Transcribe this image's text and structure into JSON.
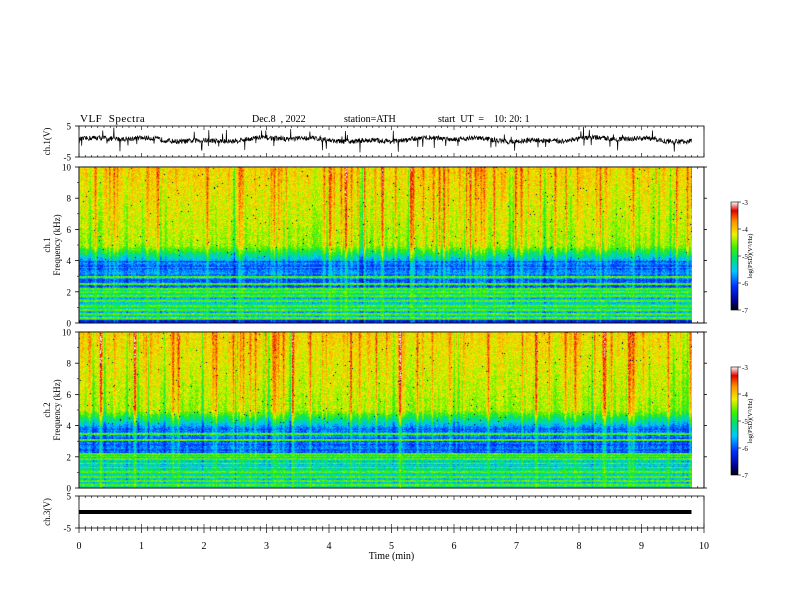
{
  "header": {
    "title": "VLF  Spectra",
    "date": "Dec.8  , 2022",
    "station": "station=ATH",
    "start": "start  UT  =    10: 20: 1"
  },
  "chart_data": [
    {
      "type": "line",
      "name": "ch1-waveform",
      "ylabel": "ch.1(V)",
      "ylim": [
        -5,
        5
      ],
      "yticks": [
        "5",
        "-5"
      ],
      "xlim": [
        0,
        10
      ],
      "baseline_v": 0.6,
      "data_end_min": 9.8
    },
    {
      "type": "heatmap",
      "name": "ch1-spectrogram",
      "ylabel": "ch.1\nFrequency (kHz)",
      "ylim": [
        0,
        10
      ],
      "yticks": [
        "0",
        "2",
        "4",
        "6",
        "8",
        "10"
      ],
      "xlim": [
        0,
        10
      ],
      "data_end_min": 9.8,
      "colorbar": {
        "label": "log(PSD)(V²/Hz)",
        "range": [
          -7,
          -3
        ],
        "ticks": [
          "-3",
          "-4",
          "-5",
          "-6",
          "-7"
        ]
      }
    },
    {
      "type": "heatmap",
      "name": "ch2-spectrogram",
      "ylabel": "ch.2\nFrequency (kHz)",
      "ylim": [
        0,
        10
      ],
      "yticks": [
        "0",
        "2",
        "4",
        "6",
        "8",
        "10"
      ],
      "xlim": [
        0,
        10
      ],
      "data_end_min": 9.8,
      "colorbar": {
        "label": "log(PSD)(V²/Hz)",
        "range": [
          -7,
          -3
        ],
        "ticks": [
          "-3",
          "-4",
          "-5",
          "-6",
          "-7"
        ]
      }
    },
    {
      "type": "line",
      "name": "ch3-waveform",
      "ylabel": "ch.3(V)",
      "ylim": [
        -5,
        5
      ],
      "yticks": [
        "5",
        "-5"
      ],
      "xlim": [
        0,
        10
      ],
      "baseline_v": 0,
      "data_end_min": 9.8
    }
  ],
  "xaxis": {
    "label": "Time  (min)",
    "ticks": [
      "0",
      "1",
      "2",
      "3",
      "4",
      "5",
      "6",
      "7",
      "8",
      "9",
      "10"
    ]
  }
}
